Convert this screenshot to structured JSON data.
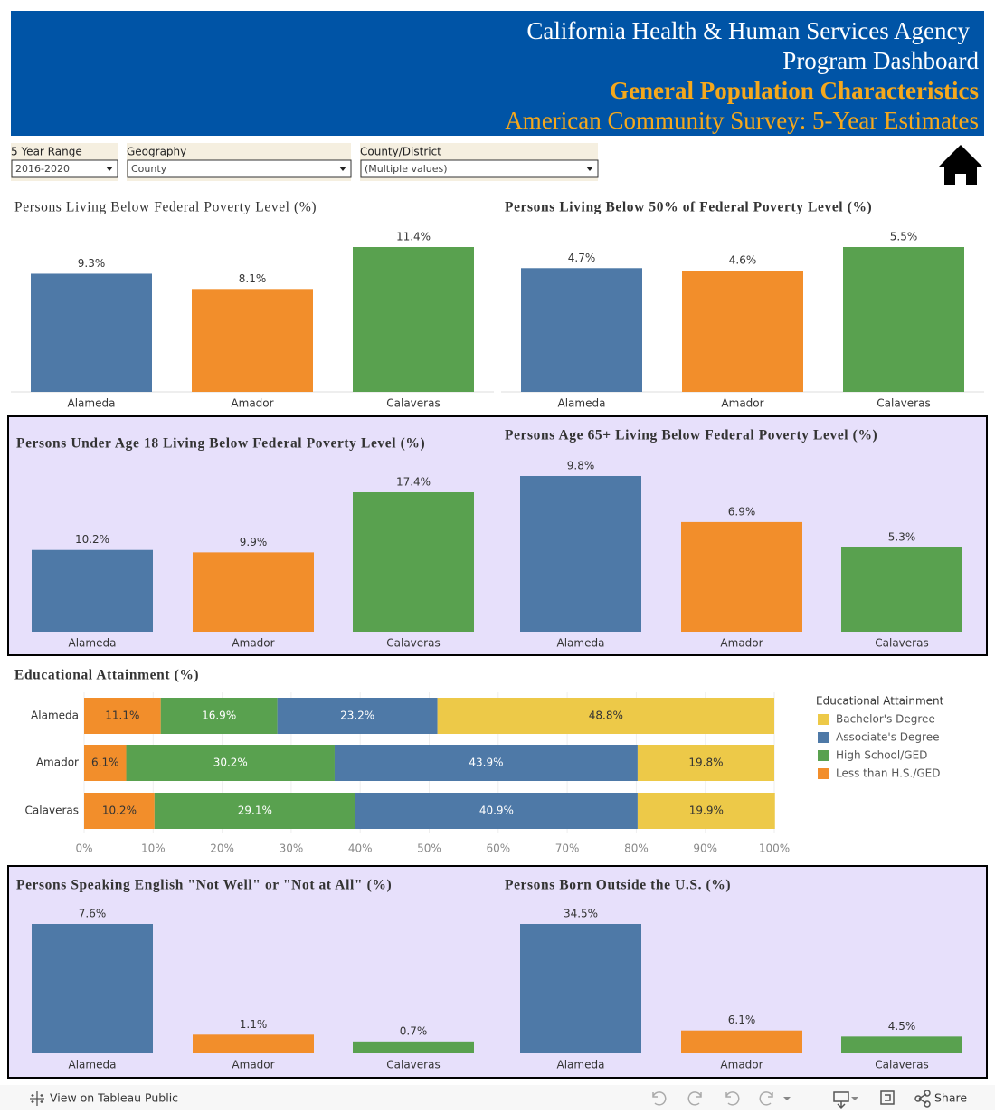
{
  "header": {
    "lines": [
      "California Health & Human Services Agency",
      "Program Dashboard",
      "General Population Characteristics",
      "American Community Survey: 5-Year Estimates"
    ]
  },
  "filters": [
    {
      "label": "5 Year Range",
      "value": "2016-2020"
    },
    {
      "label": "Geography",
      "value": "County"
    },
    {
      "label": "County/District",
      "value": "(Multiple values)"
    }
  ],
  "chart_data": [
    {
      "type": "bar",
      "title": "Persons Living Below Federal Poverty Level (%)",
      "categories": [
        "Alameda",
        "Amador",
        "Calaveras"
      ],
      "values": [
        9.3,
        8.1,
        11.4
      ],
      "value_labels": [
        "9.3%",
        "8.1%",
        "11.4%"
      ],
      "colors": [
        "#4e79a7",
        "#f28e2b",
        "#59a14f"
      ]
    },
    {
      "type": "bar",
      "title": "Persons Living Below 50% of Federal Poverty Level (%)",
      "categories": [
        "Alameda",
        "Amador",
        "Calaveras"
      ],
      "values": [
        4.7,
        4.6,
        5.5
      ],
      "value_labels": [
        "4.7%",
        "4.6%",
        "5.5%"
      ],
      "colors": [
        "#4e79a7",
        "#f28e2b",
        "#59a14f"
      ]
    },
    {
      "type": "bar",
      "title": "Persons Under Age 18 Living Below Federal Poverty Level (%)",
      "categories": [
        "Alameda",
        "Amador",
        "Calaveras"
      ],
      "values": [
        10.2,
        9.9,
        17.4
      ],
      "value_labels": [
        "10.2%",
        "9.9%",
        "17.4%"
      ],
      "colors": [
        "#4e79a7",
        "#f28e2b",
        "#59a14f"
      ]
    },
    {
      "type": "bar",
      "title": "Persons Age 65+ Living Below Federal Poverty Level (%)",
      "categories": [
        "Alameda",
        "Amador",
        "Calaveras"
      ],
      "values": [
        9.8,
        6.9,
        5.3
      ],
      "value_labels": [
        "9.8%",
        "6.9%",
        "5.3%"
      ],
      "colors": [
        "#4e79a7",
        "#f28e2b",
        "#59a14f"
      ]
    },
    {
      "type": "stacked-bar",
      "title": "Educational Attainment (%)",
      "legend_title": "Educational Attainment",
      "categories": [
        "Alameda",
        "Amador",
        "Calaveras"
      ],
      "series": [
        {
          "name": "Less than H.S./GED",
          "color": "#f28e2b",
          "values": [
            11.1,
            6.1,
            10.2
          ],
          "value_labels": [
            "11.1%",
            "6.1%",
            "10.2%"
          ]
        },
        {
          "name": "High School/GED",
          "color": "#59a14f",
          "values": [
            16.9,
            30.2,
            29.1
          ],
          "value_labels": [
            "16.9%",
            "30.2%",
            "29.1%"
          ]
        },
        {
          "name": "Associate's Degree",
          "color": "#4e79a7",
          "values": [
            23.2,
            43.9,
            40.9
          ],
          "value_labels": [
            "23.2%",
            "43.9%",
            "40.9%"
          ]
        },
        {
          "name": "Bachelor's Degree",
          "color": "#edc948",
          "values": [
            48.8,
            19.8,
            19.9
          ],
          "value_labels": [
            "48.8%",
            "19.8%",
            "19.9%"
          ]
        }
      ],
      "xlim": [
        0,
        100
      ],
      "xticks": [
        {
          "value": 0,
          "label": "0%"
        },
        {
          "value": 10,
          "label": "10%"
        },
        {
          "value": 20,
          "label": "20%"
        },
        {
          "value": 30,
          "label": "30%"
        },
        {
          "value": 40,
          "label": "40%"
        },
        {
          "value": 50,
          "label": "50%"
        },
        {
          "value": 60,
          "label": "60%"
        },
        {
          "value": 70,
          "label": "70%"
        },
        {
          "value": 80,
          "label": "80%"
        },
        {
          "value": 90,
          "label": "90%"
        },
        {
          "value": 100,
          "label": "100%"
        }
      ]
    },
    {
      "type": "bar",
      "title": "Persons Speaking English \"Not Well\" or \"Not at All\" (%)",
      "categories": [
        "Alameda",
        "Amador",
        "Calaveras"
      ],
      "values": [
        7.6,
        1.1,
        0.7
      ],
      "value_labels": [
        "7.6%",
        "1.1%",
        "0.7%"
      ],
      "colors": [
        "#4e79a7",
        "#f28e2b",
        "#59a14f"
      ]
    },
    {
      "type": "bar",
      "title": "Persons Born Outside the U.S. (%)",
      "categories": [
        "Alameda",
        "Amador",
        "Calaveras"
      ],
      "values": [
        34.5,
        6.1,
        4.5
      ],
      "value_labels": [
        "34.5%",
        "6.1%",
        "4.5%"
      ],
      "colors": [
        "#4e79a7",
        "#f28e2b",
        "#59a14f"
      ]
    }
  ],
  "footer": {
    "link": "View on Tableau Public",
    "share": "Share"
  }
}
